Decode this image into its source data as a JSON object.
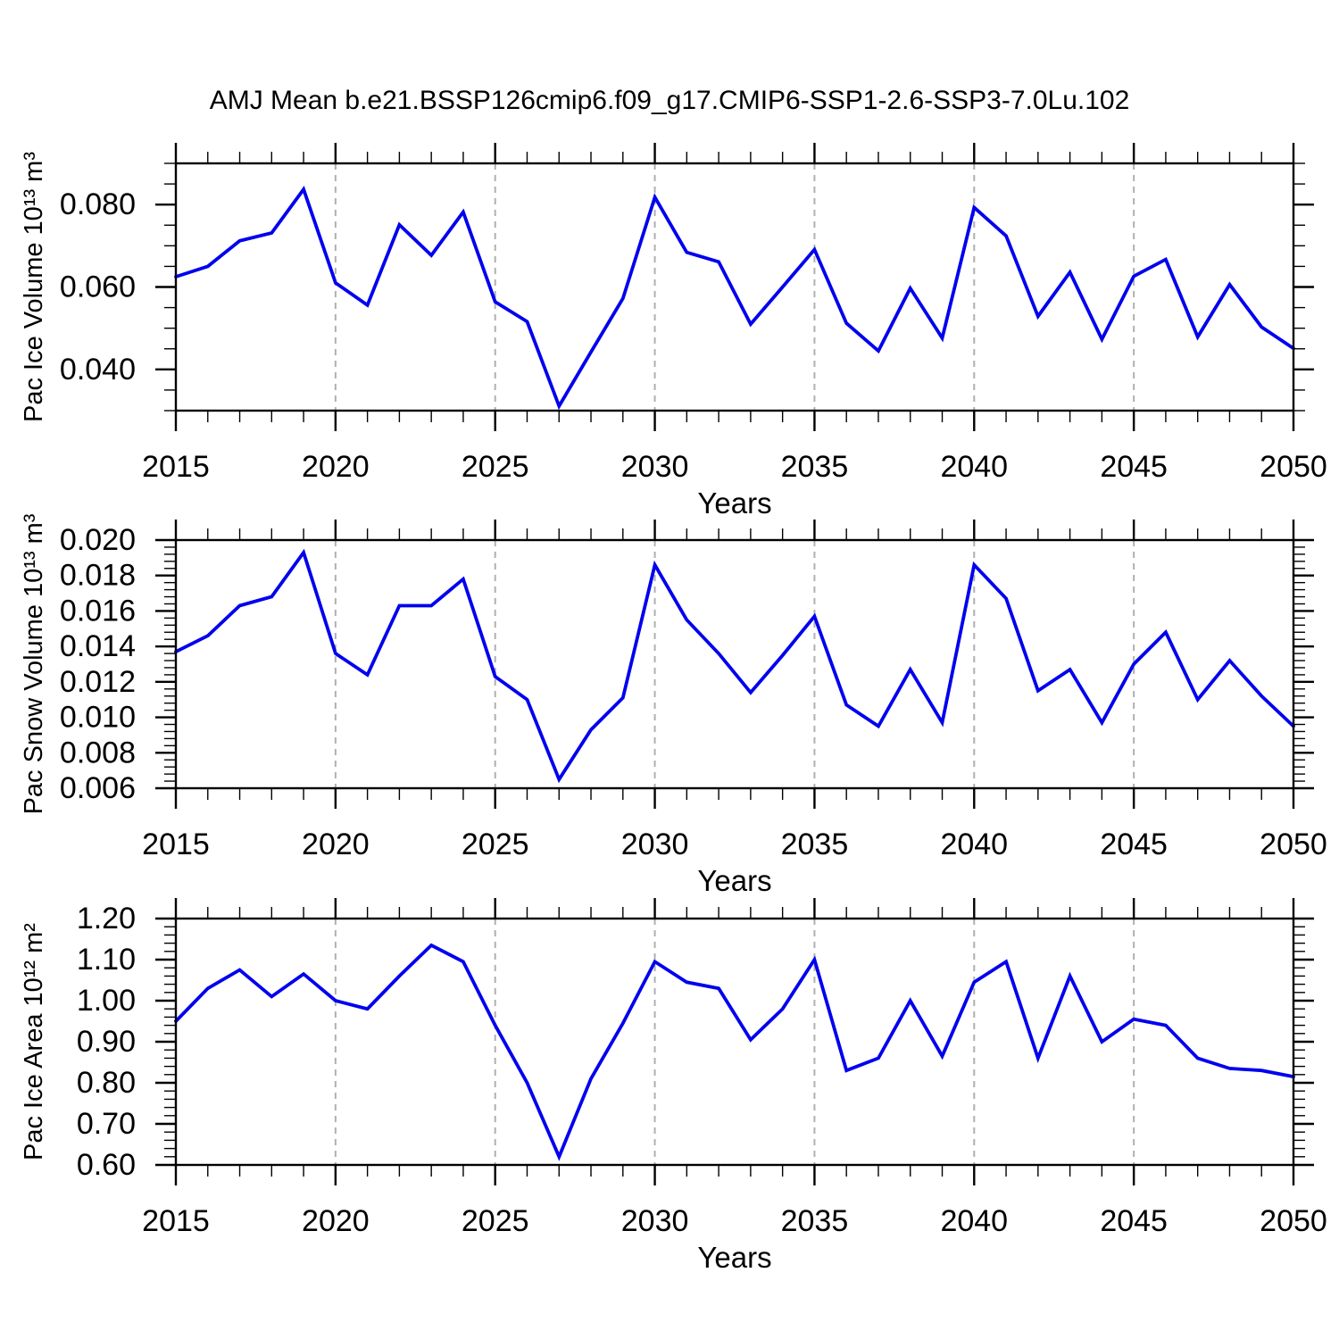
{
  "title": "AMJ Mean b.e21.BSSP126cmip6.f09_g17.CMIP6-SSP1-2.6-SSP3-7.0Lu.102",
  "line_color": "#0000ee",
  "grid_color": "#b0b0b0",
  "chart_data": [
    {
      "type": "line",
      "ylabel": "Pac Ice Volume 10¹³ m³",
      "xlabel": "Years",
      "x": [
        2015,
        2016,
        2017,
        2018,
        2019,
        2020,
        2021,
        2022,
        2023,
        2024,
        2025,
        2026,
        2027,
        2028,
        2029,
        2030,
        2031,
        2032,
        2033,
        2034,
        2035,
        2036,
        2037,
        2038,
        2039,
        2040,
        2041,
        2042,
        2043,
        2044,
        2045,
        2046,
        2047,
        2048,
        2049,
        2050
      ],
      "values": [
        0.0625,
        0.065,
        0.0712,
        0.0731,
        0.0837,
        0.061,
        0.0556,
        0.0751,
        0.0677,
        0.0782,
        0.0564,
        0.0516,
        0.0311,
        0.0442,
        0.0572,
        0.0818,
        0.0684,
        0.0661,
        0.051,
        0.06,
        0.0691,
        0.0512,
        0.0445,
        0.0597,
        0.0476,
        0.0793,
        0.0724,
        0.0529,
        0.0636,
        0.0473,
        0.0626,
        0.0667,
        0.0479,
        0.0606,
        0.0503,
        0.0451
      ],
      "xlim": [
        2015,
        2050
      ],
      "ylim": [
        0.03,
        0.09
      ],
      "xtick_values": [
        2015,
        2020,
        2025,
        2030,
        2035,
        2040,
        2045,
        2050
      ],
      "xtick_labels": [
        "2015",
        "2020",
        "2025",
        "2030",
        "2035",
        "2040",
        "2045",
        "2050"
      ],
      "xtick_minor_step": 1,
      "ytick_values": [
        0.04,
        0.06,
        0.08
      ],
      "ytick_labels": [
        "0.040",
        "0.060",
        "0.080"
      ],
      "ytick_minor_step": 0.005,
      "gridlines_x": [
        2020,
        2025,
        2030,
        2035,
        2040,
        2045
      ],
      "grid": "vertical dashed",
      "legend": "none"
    },
    {
      "type": "line",
      "ylabel": "Pac Snow Volume 10¹³ m³",
      "xlabel": "Years",
      "x": [
        2015,
        2016,
        2017,
        2018,
        2019,
        2020,
        2021,
        2022,
        2023,
        2024,
        2025,
        2026,
        2027,
        2028,
        2029,
        2030,
        2031,
        2032,
        2033,
        2034,
        2035,
        2036,
        2037,
        2038,
        2039,
        2040,
        2041,
        2042,
        2043,
        2044,
        2045,
        2046,
        2047,
        2048,
        2049,
        2050
      ],
      "values": [
        0.0137,
        0.0146,
        0.0163,
        0.0168,
        0.0193,
        0.0136,
        0.0124,
        0.0163,
        0.0163,
        0.0178,
        0.0123,
        0.011,
        0.0065,
        0.0093,
        0.0111,
        0.0186,
        0.0155,
        0.0136,
        0.0114,
        0.0135,
        0.0157,
        0.0107,
        0.0095,
        0.0127,
        0.0097,
        0.0186,
        0.0167,
        0.0115,
        0.0127,
        0.0097,
        0.013,
        0.0148,
        0.011,
        0.0132,
        0.0112,
        0.0095
      ],
      "xlim": [
        2015,
        2050
      ],
      "ylim": [
        0.006,
        0.02
      ],
      "xtick_values": [
        2015,
        2020,
        2025,
        2030,
        2035,
        2040,
        2045,
        2050
      ],
      "xtick_labels": [
        "2015",
        "2020",
        "2025",
        "2030",
        "2035",
        "2040",
        "2045",
        "2050"
      ],
      "xtick_minor_step": 1,
      "ytick_values": [
        0.006,
        0.008,
        0.01,
        0.012,
        0.014,
        0.016,
        0.018,
        0.02
      ],
      "ytick_labels": [
        "0.006",
        "0.008",
        "0.010",
        "0.012",
        "0.014",
        "0.016",
        "0.018",
        "0.020"
      ],
      "ytick_minor_step": 0.0004,
      "gridlines_x": [
        2020,
        2025,
        2030,
        2035,
        2040,
        2045
      ],
      "grid": "vertical dashed",
      "legend": "none"
    },
    {
      "type": "line",
      "ylabel": "Pac Ice Area 10¹² m²",
      "xlabel": "Years",
      "x": [
        2015,
        2016,
        2017,
        2018,
        2019,
        2020,
        2021,
        2022,
        2023,
        2024,
        2025,
        2026,
        2027,
        2028,
        2029,
        2030,
        2031,
        2032,
        2033,
        2034,
        2035,
        2036,
        2037,
        2038,
        2039,
        2040,
        2041,
        2042,
        2043,
        2044,
        2045,
        2046,
        2047,
        2048,
        2049,
        2050
      ],
      "values": [
        0.95,
        1.03,
        1.075,
        1.01,
        1.065,
        1.0,
        0.98,
        1.06,
        1.135,
        1.095,
        0.94,
        0.8,
        0.62,
        0.81,
        0.945,
        1.095,
        1.045,
        1.03,
        0.905,
        0.98,
        1.1,
        0.83,
        0.86,
        1.0,
        0.865,
        1.045,
        1.095,
        0.86,
        1.06,
        0.9,
        0.955,
        0.94,
        0.86,
        0.835,
        0.83,
        0.815
      ],
      "xlim": [
        2015,
        2050
      ],
      "ylim": [
        0.6,
        1.2
      ],
      "xtick_values": [
        2015,
        2020,
        2025,
        2030,
        2035,
        2040,
        2045,
        2050
      ],
      "xtick_labels": [
        "2015",
        "2020",
        "2025",
        "2030",
        "2035",
        "2040",
        "2045",
        "2050"
      ],
      "xtick_minor_step": 1,
      "ytick_values": [
        0.6,
        0.7,
        0.8,
        0.9,
        1.0,
        1.1,
        1.2
      ],
      "ytick_labels": [
        "0.60",
        "0.70",
        "0.80",
        "0.90",
        "1.00",
        "1.10",
        "1.20"
      ],
      "ytick_minor_step": 0.02,
      "gridlines_x": [
        2020,
        2025,
        2030,
        2035,
        2040,
        2045
      ],
      "grid": "vertical dashed",
      "legend": "none"
    }
  ]
}
